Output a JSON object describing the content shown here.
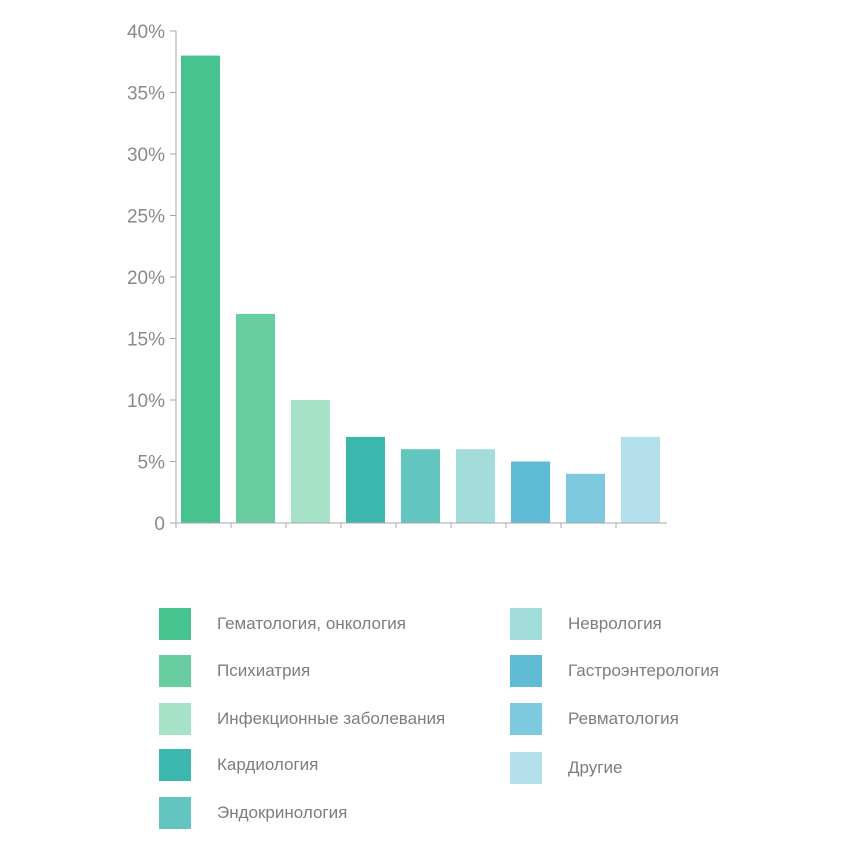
{
  "chart_data": {
    "type": "bar",
    "categories": [
      "Гематология, онкология",
      "Психиатрия",
      "Инфекционные заболевания",
      "Кардиология",
      "Эндокринология",
      "Неврология",
      "Гастроэнтерология",
      "Ревматология",
      "Другие"
    ],
    "values": [
      38,
      17,
      10,
      7,
      6,
      6,
      5,
      4,
      7
    ],
    "colors": [
      "#47c38f",
      "#68cea1",
      "#a6e2c8",
      "#3bb7ae",
      "#62c5bf",
      "#a2dcdb",
      "#5fbcd4",
      "#7dcadf",
      "#b3e0ea"
    ],
    "ylim": [
      0,
      40
    ],
    "yticks": [
      0,
      5,
      10,
      15,
      20,
      25,
      30,
      35,
      40
    ],
    "ytick_labels": [
      "0",
      "5%",
      "10%",
      "15%",
      "20%",
      "25%",
      "30%",
      "35%",
      "40%"
    ],
    "grid": false,
    "legend_placement": "bottom, two columns"
  },
  "legend": {
    "items": [
      {
        "label": "Гематология, онкология",
        "color": "#47c38f"
      },
      {
        "label": "Психиатрия",
        "color": "#68cea1"
      },
      {
        "label": "Инфекционные заболевания",
        "color": "#a6e2c8"
      },
      {
        "label": "Кардиология",
        "color": "#3bb7ae"
      },
      {
        "label": "Эндокринология",
        "color": "#62c5bf"
      },
      {
        "label": "Неврология",
        "color": "#a2dcdb"
      },
      {
        "label": "Гастроэнтерология",
        "color": "#5fbcd4"
      },
      {
        "label": "Ревматология",
        "color": "#7dcadf"
      },
      {
        "label": "Другие",
        "color": "#b3e0ea"
      }
    ]
  }
}
